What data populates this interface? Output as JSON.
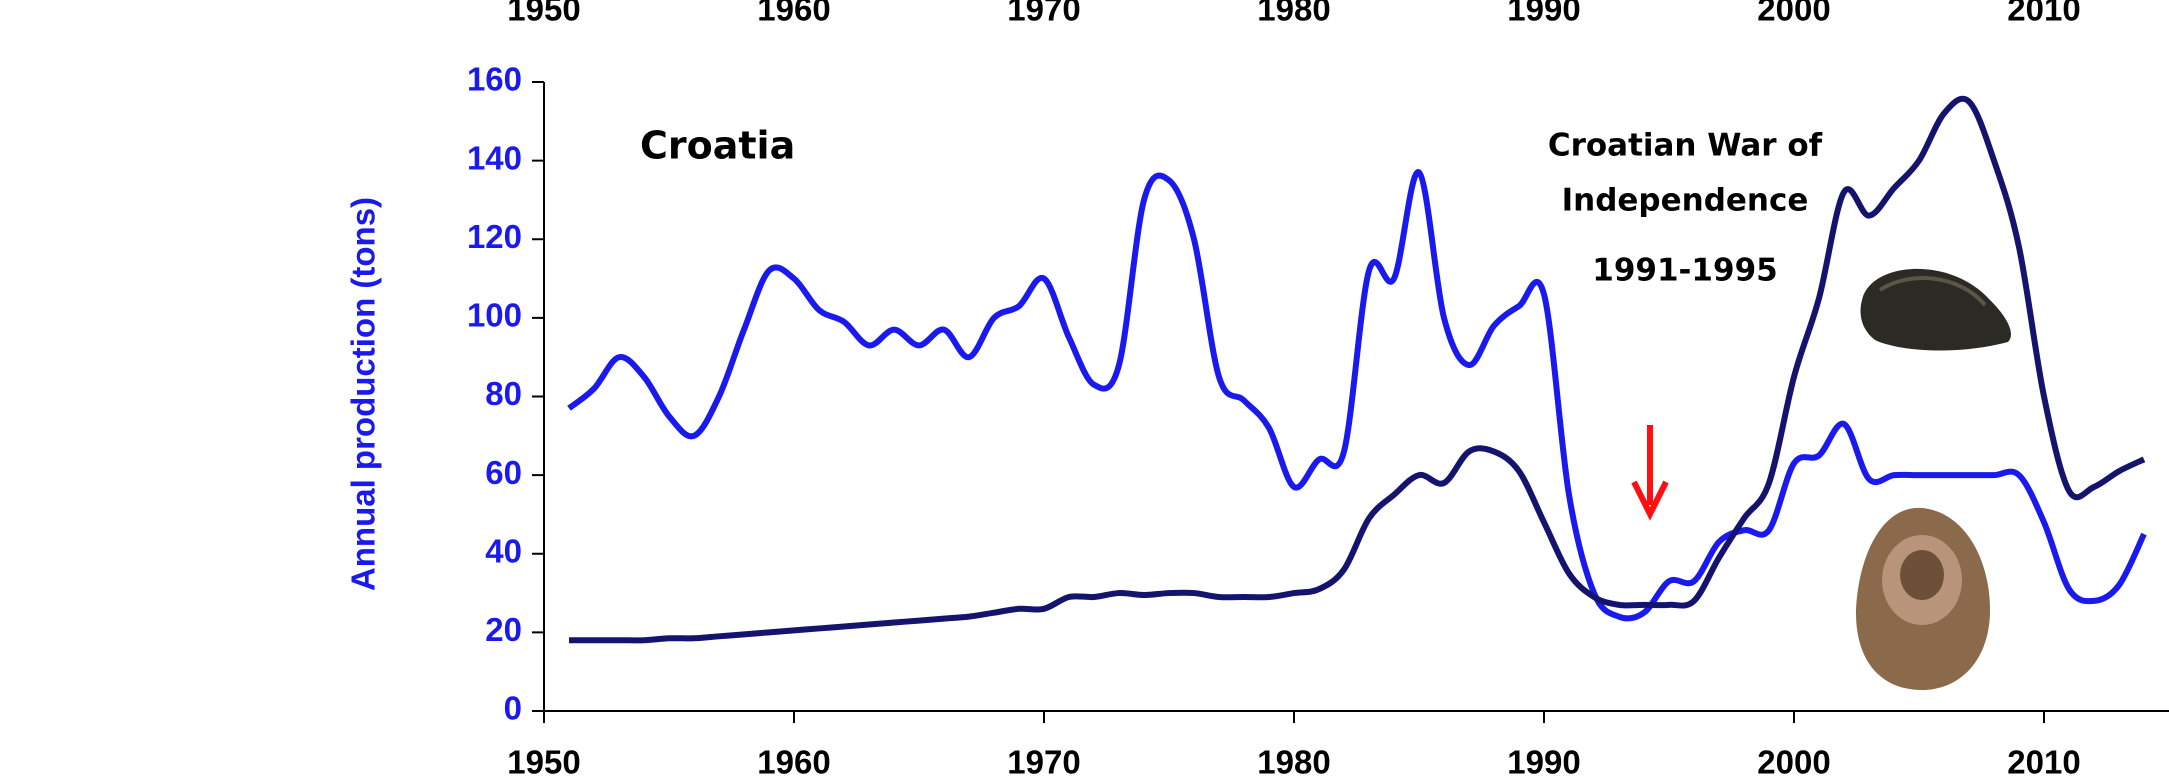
{
  "chart_data": {
    "type": "line",
    "ylabel": "Annual production (tons)",
    "annotations": [
      "Croatia",
      "Croatian War of",
      "Independence",
      "1991-1995"
    ],
    "x": [
      1951,
      1952,
      1953,
      1954,
      1955,
      1956,
      1957,
      1958,
      1959,
      1960,
      1961,
      1962,
      1963,
      1964,
      1965,
      1966,
      1967,
      1968,
      1969,
      1970,
      1971,
      1972,
      1973,
      1974,
      1975,
      1976,
      1977,
      1978,
      1979,
      1980,
      1981,
      1982,
      1983,
      1984,
      1985,
      1986,
      1987,
      1988,
      1989,
      1990,
      1991,
      1992,
      1993,
      1994,
      1995,
      1996,
      1997,
      1998,
      1999,
      2000,
      2001,
      2002,
      2003,
      2004,
      2005,
      2006,
      2007,
      2008,
      2009,
      2010,
      2011,
      2012,
      2013,
      2014
    ],
    "series": [
      {
        "color": "#1a1aee",
        "values": [
          77,
          82,
          90,
          85,
          75,
          70,
          80,
          97,
          112,
          110,
          102,
          99,
          93,
          97,
          93,
          97,
          90,
          100,
          103,
          110,
          95,
          83,
          88,
          130,
          135,
          120,
          85,
          79,
          72,
          57,
          64,
          66,
          112,
          110,
          137,
          100,
          88,
          98,
          103,
          106,
          55,
          30,
          24,
          25,
          33,
          33,
          43,
          46,
          46,
          63,
          65,
          73,
          59,
          60,
          60,
          60,
          60,
          60,
          60,
          48,
          31,
          28,
          32,
          45
        ]
      },
      {
        "color": "#14146e",
        "values": [
          18,
          18,
          18,
          18,
          18.5,
          18.5,
          19,
          19.5,
          20,
          20.5,
          21,
          21.5,
          22,
          22.5,
          23,
          23.5,
          24,
          25,
          26,
          26,
          29,
          29,
          30,
          29.5,
          30,
          30,
          29,
          29,
          29,
          30,
          31,
          36,
          49,
          55,
          60,
          58,
          66,
          66,
          61,
          48,
          35,
          29,
          27,
          27,
          27,
          28,
          39,
          49,
          58,
          85,
          105,
          132,
          126,
          133,
          140,
          152,
          155,
          140,
          118,
          80,
          56,
          57,
          61,
          64
        ]
      }
    ],
    "xlim": [
      1950,
      2015
    ],
    "xticks": [
      1950,
      1960,
      1970,
      1980,
      1990,
      2000,
      2010
    ],
    "ylim": [
      0,
      160
    ],
    "yticks": [
      0,
      20,
      40,
      60,
      80,
      100,
      120,
      140,
      160
    ],
    "axis_color": "#1a1aee"
  }
}
